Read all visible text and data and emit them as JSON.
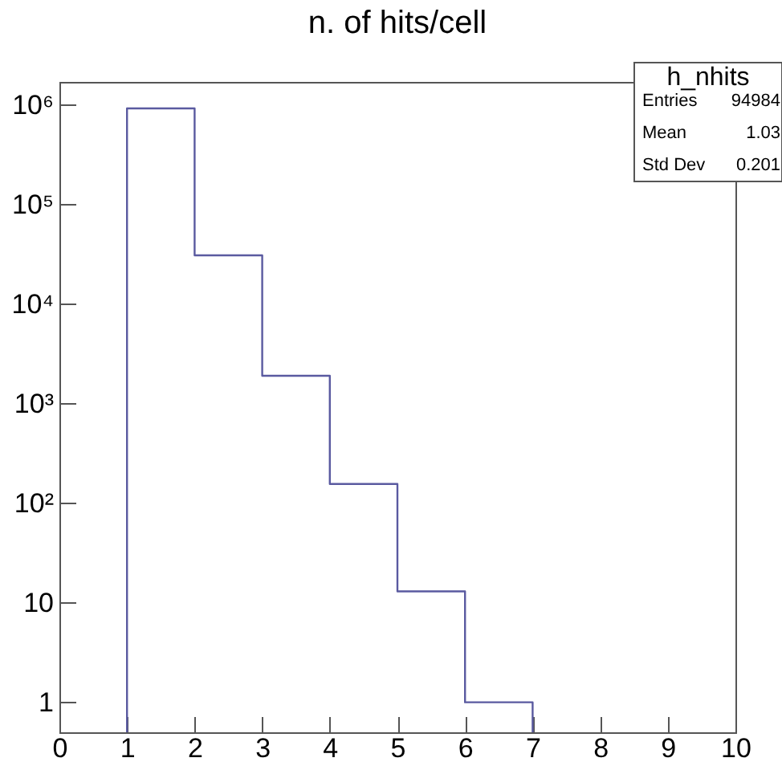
{
  "chart_data": {
    "type": "histogram",
    "title": "n. of hits/cell",
    "bins": [
      1,
      2,
      3,
      4,
      5,
      6,
      7
    ],
    "values": [
      920000,
      30800,
      1900,
      156,
      13,
      1
    ],
    "color": "#5a5aa0",
    "log": "y",
    "grid": false,
    "xlim": [
      0,
      10
    ],
    "xticks": [
      0,
      1,
      2,
      3,
      4,
      5,
      6,
      7,
      8,
      9,
      10
    ],
    "ylim": [
      0.5,
      1700000
    ],
    "yticks": [
      1,
      10,
      {
        "value": 100,
        "label": "10²"
      },
      {
        "value": 1000,
        "label": "10³"
      },
      {
        "value": 10000,
        "label": "10⁴"
      },
      {
        "value": 100000,
        "label": "10⁵"
      },
      {
        "value": 1000000,
        "label": "10⁶"
      }
    ],
    "annotations": [
      "h_nhits",
      "Entries",
      "94984",
      "Mean",
      "1.03",
      "Std Dev",
      "0.201"
    ]
  }
}
